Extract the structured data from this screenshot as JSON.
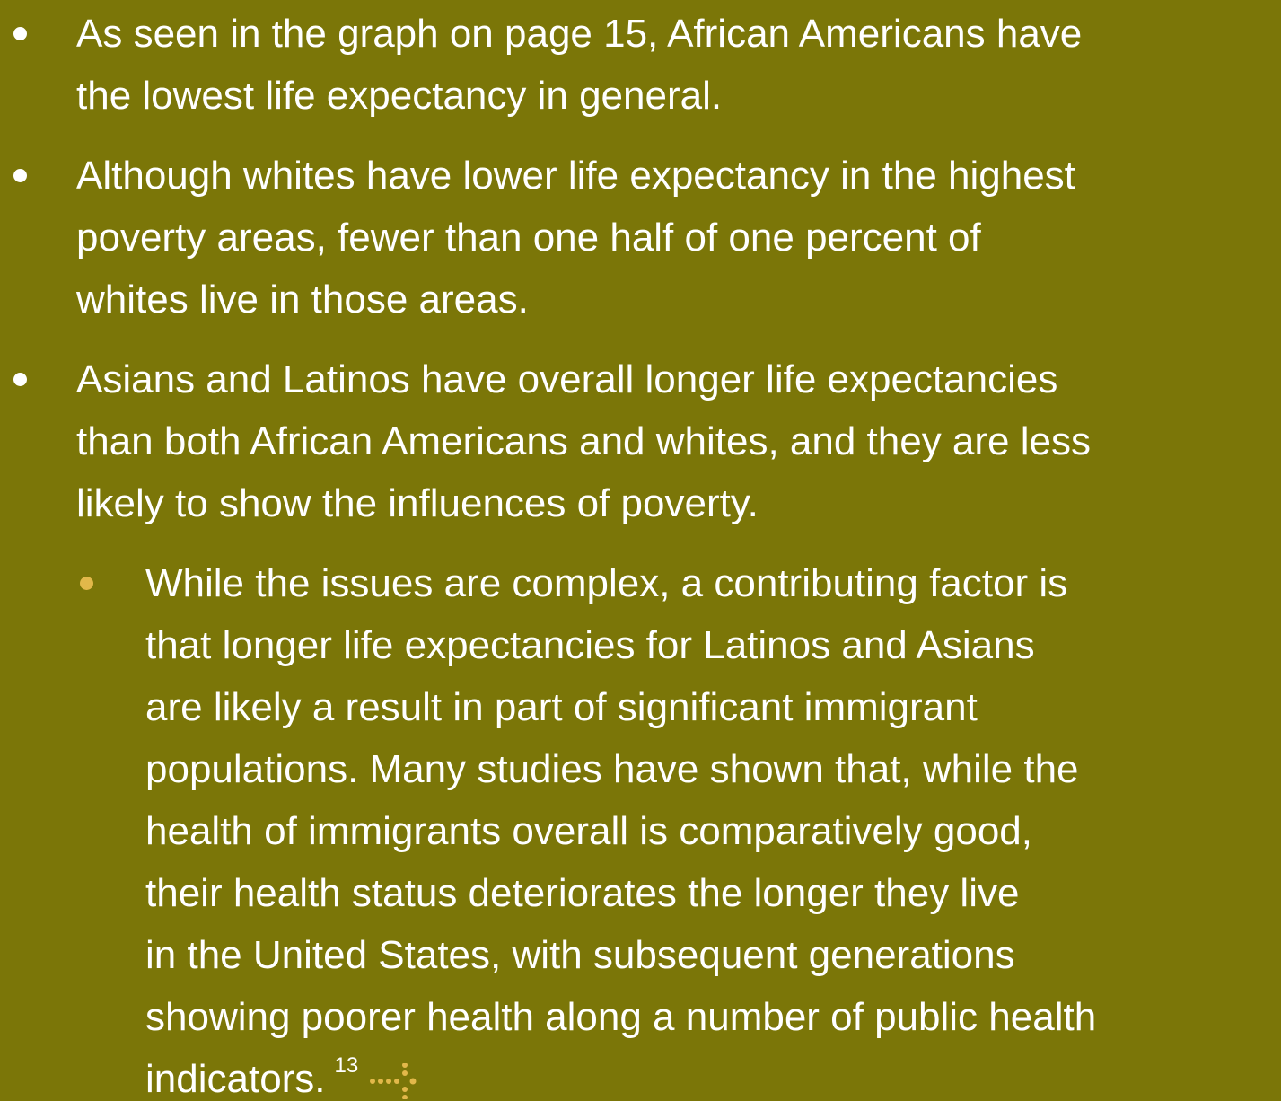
{
  "bullets": [
    {
      "lines": [
        "As seen in the graph on page 15, African Americans have",
        "the lowest life expectancy in general."
      ]
    },
    {
      "lines": [
        "Although whites have lower life expectancy in the highest",
        "poverty areas, fewer than one half of one percent of",
        "whites live in those areas."
      ]
    },
    {
      "lines": [
        "Asians and Latinos have overall longer life expectancies",
        "than both African Americans and whites, and they are less",
        "likely to show the influences of poverty."
      ],
      "sub_bullets": [
        {
          "lines": [
            "While the issues are complex, a contributing factor is",
            "that longer life expectancies for Latinos and Asians",
            "are likely a result in part of significant immigrant",
            "populations. Many studies have shown that, while the",
            "health of immigrants overall is comparatively good,",
            "their health status deteriorates the longer they live",
            "in the United States, with subsequent generations",
            "showing poorer health along a number of public health",
            "indicators."
          ],
          "footnote": "13"
        }
      ]
    }
  ]
}
